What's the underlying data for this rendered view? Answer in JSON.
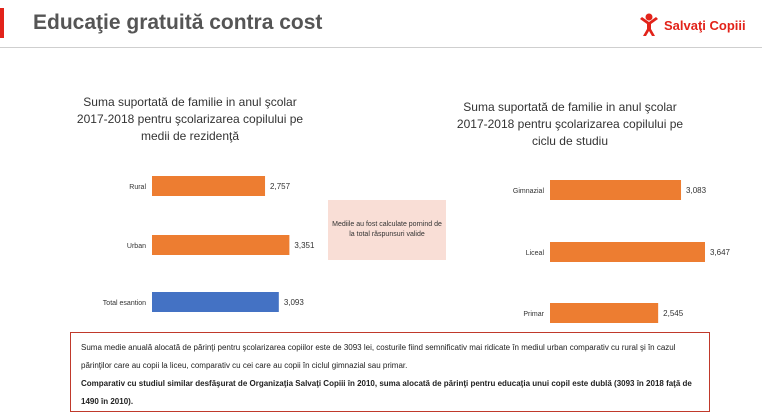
{
  "header": {
    "title": "Educaţie gratuită contra cost",
    "logo_text": "Salvaţi Copiii",
    "accent_color": "#e2231a"
  },
  "chart_data": [
    {
      "type": "bar",
      "orientation": "horizontal",
      "title_lines": [
        "Suma suportată de familie in anul şcolar",
        "2017-2018 pentru şcolarizarea copilului pe",
        "medii de rezidenţă"
      ],
      "categories": [
        "Rural",
        "Urban",
        "Total esantion"
      ],
      "values": [
        2757,
        3351,
        3093
      ],
      "value_labels": [
        "2,757",
        "3,351",
        "3,093"
      ],
      "colors": [
        "#ed7d31",
        "#ed7d31",
        "#4472c4"
      ],
      "xlim": [
        0,
        4000
      ]
    },
    {
      "type": "bar",
      "orientation": "horizontal",
      "title_lines": [
        "Suma suportată de familie in anul şcolar",
        "2017-2018 pentru şcolarizarea copilului pe",
        "ciclu de studiu"
      ],
      "categories": [
        "Gimnazial",
        "Liceal",
        "Primar"
      ],
      "values": [
        3083,
        3647,
        2545
      ],
      "value_labels": [
        "3,083",
        "3,647",
        "2,545"
      ],
      "colors": [
        "#ed7d31",
        "#ed7d31",
        "#ed7d31"
      ],
      "xlim": [
        0,
        4000
      ]
    }
  ],
  "note": {
    "text": "Mediile au fost calculate pornind de la total răspunsuri valide"
  },
  "summary": {
    "line1": "Suma medie anuală alocată de părinţi pentru şcolarizarea copiilor este de 3093 lei, costurile fiind semnificativ mai ridicate în mediul urban comparativ cu rural şi în cazul părinţilor care au copii la liceu, comparativ cu cei care au copii în ciclul gimnazial sau primar.",
    "line2": "Comparativ cu studiul similar desfăşurat de Organizaţia Salvaţi Copiii în 2010, suma alocată de părinţi pentru educaţia unui copil este dublă (3093 în 2018 faţă de 1490 în 2010)."
  }
}
